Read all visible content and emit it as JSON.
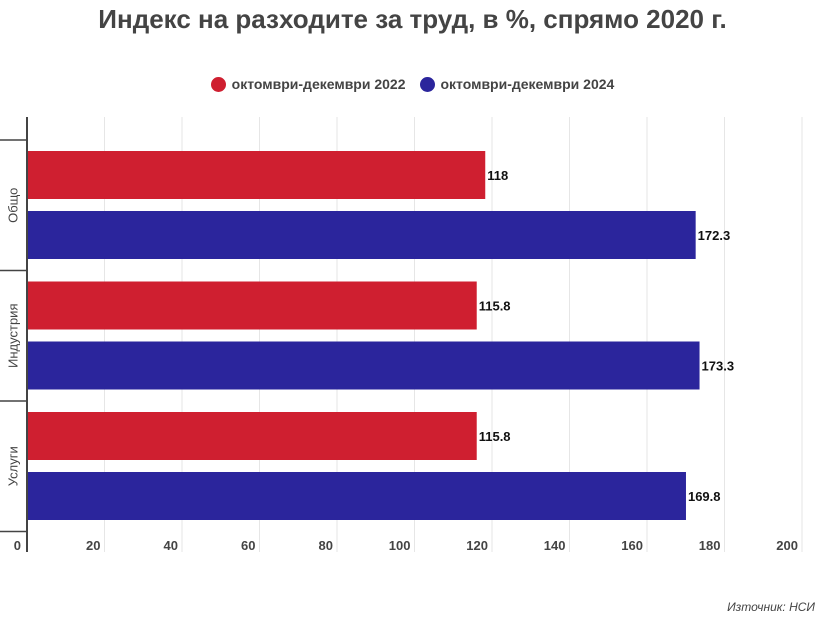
{
  "chart_data": {
    "type": "bar",
    "orientation": "horizontal",
    "title": "Индекс на разходите за труд, в %, спрямо 2020 г.",
    "categories": [
      "Общо",
      "Индустрия",
      "Услуги"
    ],
    "series": [
      {
        "name": "октомври-декември 2022",
        "color": "#cf1f30",
        "values": [
          118,
          115.8,
          115.8
        ],
        "labels": [
          "118",
          "115.8",
          "115.8"
        ]
      },
      {
        "name": "октомври-декември 2024",
        "color": "#2b259c",
        "values": [
          172.3,
          173.3,
          169.8
        ],
        "labels": [
          "172.3",
          "173.3",
          "169.8"
        ]
      }
    ],
    "xlim": [
      0,
      200
    ],
    "xticks": [
      "0",
      "20",
      "40",
      "60",
      "80",
      "100",
      "120",
      "140",
      "160",
      "180",
      "200"
    ],
    "grid": true,
    "legend_position": "top-center",
    "xlabel": "",
    "ylabel": ""
  },
  "source": "Източник: НСИ"
}
